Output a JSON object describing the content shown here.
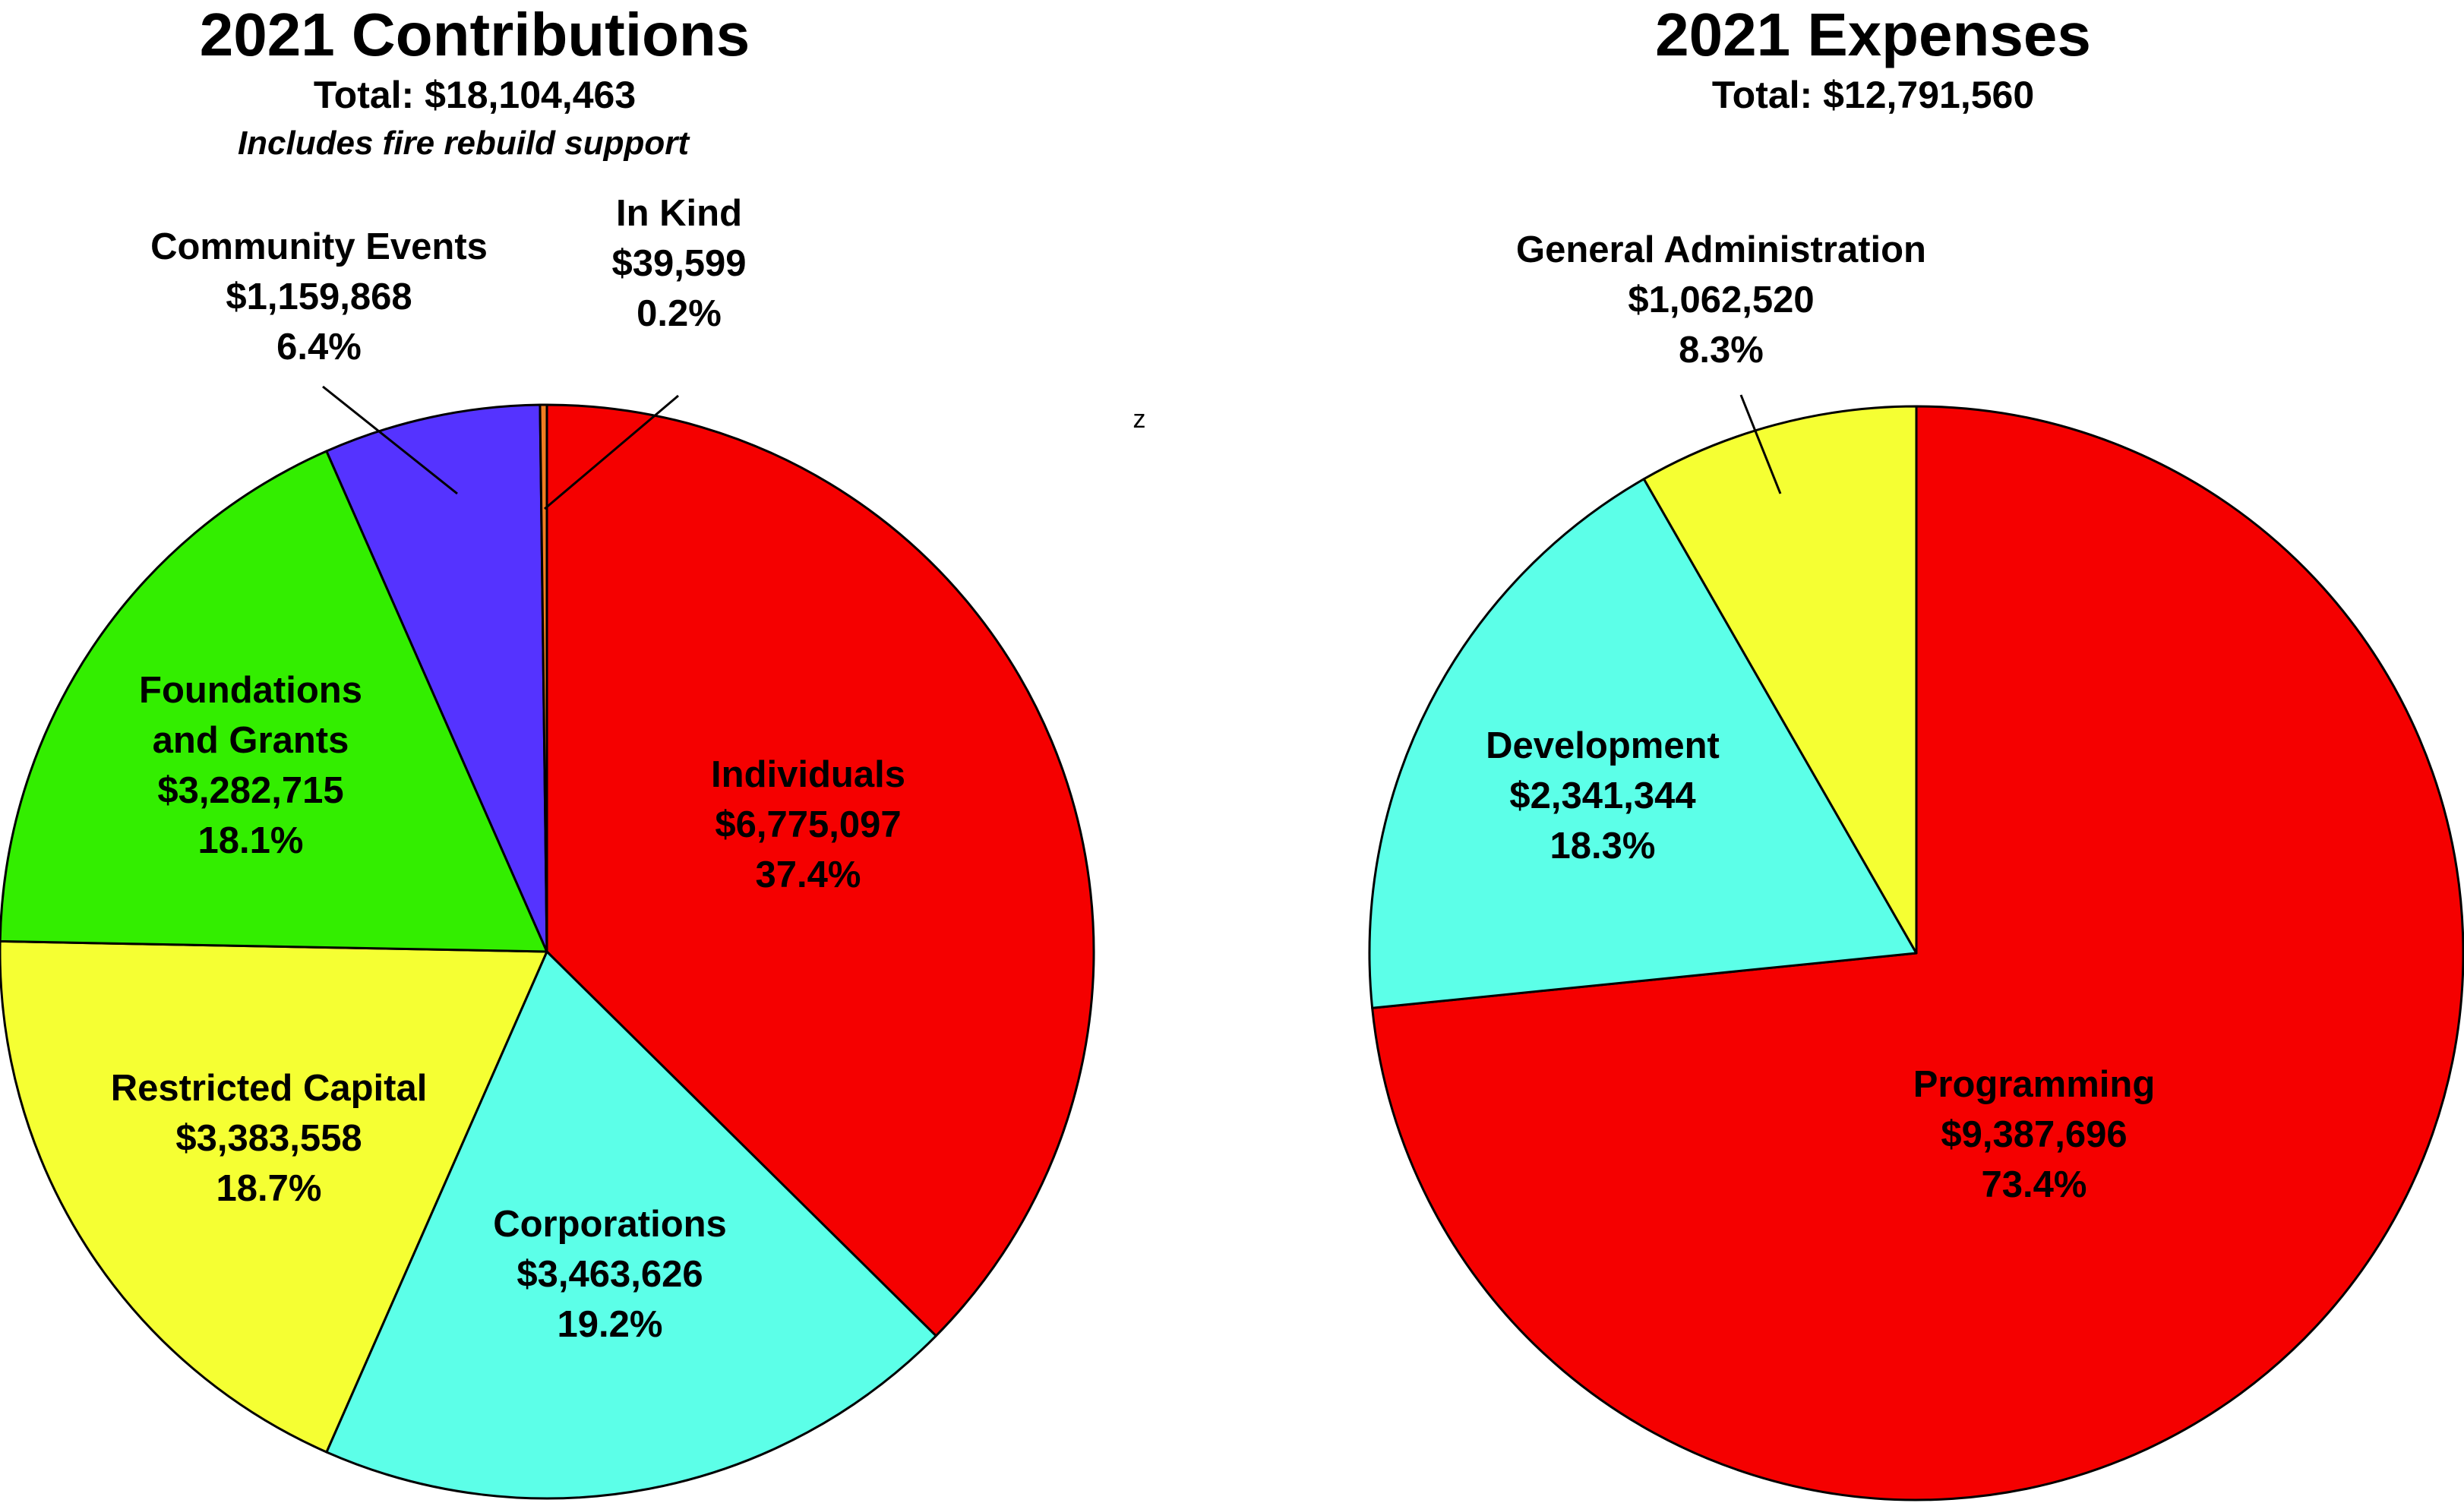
{
  "stray_mark": "z",
  "chart_data": [
    {
      "type": "pie",
      "title": "2021 Contributions",
      "subtitle": "Total: $18,104,463",
      "note": "Includes fire rebuild support",
      "slices": [
        {
          "label": "Individuals",
          "amount": "$6,775,097",
          "percent_text": "37.4%",
          "value": 37.4,
          "color": "#f50000"
        },
        {
          "label": "Corporations",
          "amount": "$3,463,626",
          "percent_text": "19.2%",
          "value": 19.2,
          "color": "#5cffe8"
        },
        {
          "label": "Restricted Capital",
          "amount": "$3,383,558",
          "percent_text": "18.7%",
          "value": 18.7,
          "color": "#f5ff33"
        },
        {
          "label": "Foundations and Grants",
          "label_lines": [
            "Foundations",
            "and Grants"
          ],
          "amount": "$3,282,715",
          "percent_text": "18.1%",
          "value": 18.1,
          "color": "#33ee00"
        },
        {
          "label": "Community Events",
          "amount": "$1,159,868",
          "percent_text": "6.4%",
          "value": 6.4,
          "color": "#5533ff"
        },
        {
          "label": "In Kind",
          "amount": "$39,599",
          "percent_text": "0.2%",
          "value": 0.2,
          "color": "#f07d22"
        }
      ]
    },
    {
      "type": "pie",
      "title": "2021 Expenses",
      "subtitle": "Total: $12,791,560",
      "slices": [
        {
          "label": "Programming",
          "amount": "$9,387,696",
          "percent_text": "73.4%",
          "value": 73.4,
          "color": "#f50000"
        },
        {
          "label": "Development",
          "amount": "$2,341,344",
          "percent_text": "18.3%",
          "value": 18.3,
          "color": "#5cffe8"
        },
        {
          "label": "General Administration",
          "amount": "$1,062,520",
          "percent_text": "8.3%",
          "value": 8.3,
          "color": "#f5ff33"
        }
      ]
    }
  ]
}
